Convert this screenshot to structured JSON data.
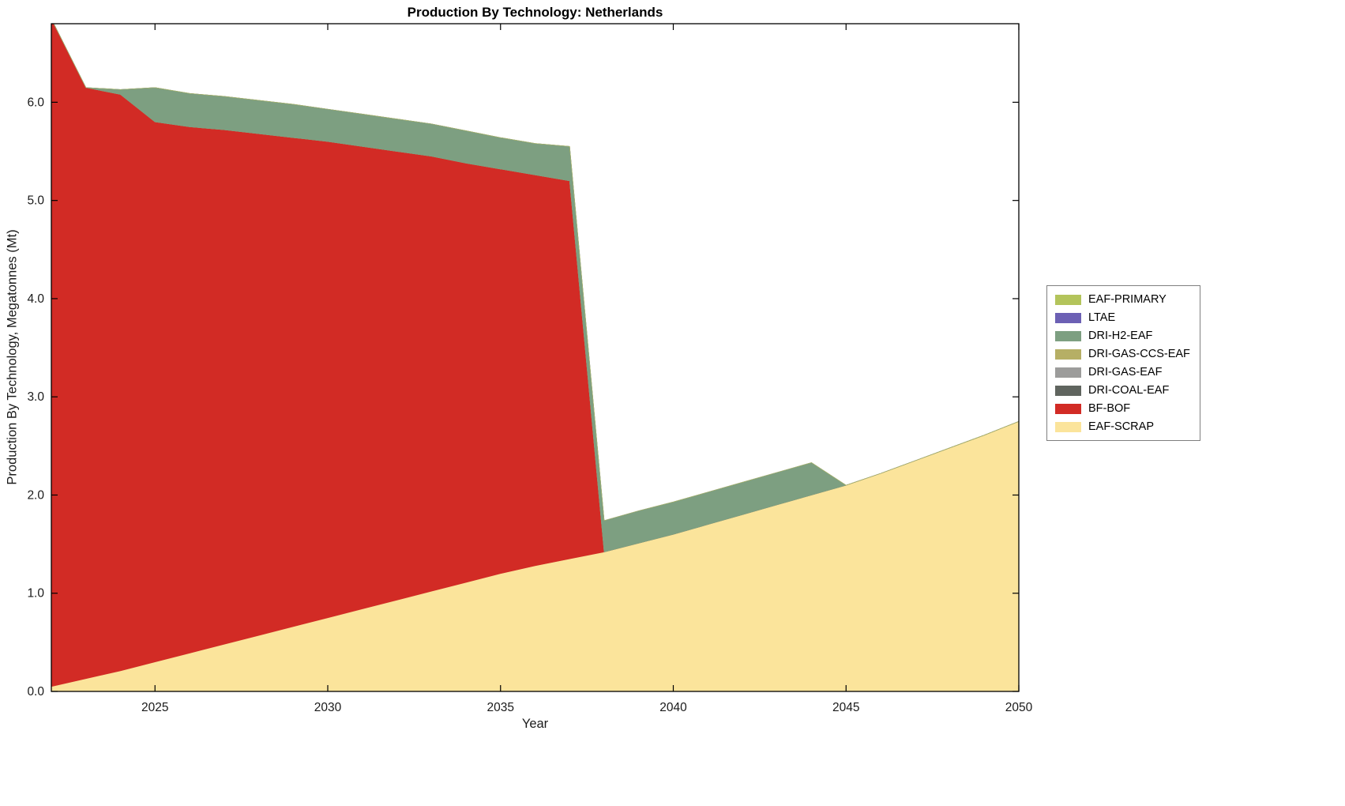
{
  "chart_data": {
    "type": "area",
    "title": "Production By Technology: Netherlands",
    "xlabel": "Year",
    "ylabel": "Production By Technology, Megatonnes (Mt)",
    "xlim": [
      2022,
      2050
    ],
    "ylim": [
      0,
      6.8
    ],
    "xticks": [
      2025,
      2030,
      2035,
      2040,
      2045,
      2050
    ],
    "yticks": [
      0,
      1,
      2,
      3,
      4,
      5,
      6
    ],
    "ytick_labels": [
      "0.0",
      "1.0",
      "2.0",
      "3.0",
      "4.0",
      "5.0",
      "6.0"
    ],
    "grid": false,
    "legend_position": "right",
    "legend_order_top_to_bottom": [
      "EAF-PRIMARY",
      "LTAE",
      "DRI-H2-EAF",
      "DRI-GAS-CCS-EAF",
      "DRI-GAS-EAF",
      "DRI-COAL-EAF",
      "BF-BOF",
      "EAF-SCRAP"
    ],
    "x": [
      2022,
      2023,
      2024,
      2025,
      2026,
      2027,
      2028,
      2029,
      2030,
      2031,
      2032,
      2033,
      2034,
      2035,
      2036,
      2037,
      2038,
      2039,
      2040,
      2041,
      2042,
      2043,
      2044,
      2045,
      2046,
      2047,
      2048,
      2049,
      2050
    ],
    "series": [
      {
        "name": "EAF-SCRAP",
        "color": "#FBE49B",
        "values": [
          0.05,
          0.13,
          0.21,
          0.3,
          0.39,
          0.48,
          0.57,
          0.66,
          0.75,
          0.84,
          0.93,
          1.02,
          1.11,
          1.2,
          1.28,
          1.35,
          1.42,
          1.51,
          1.6,
          1.7,
          1.8,
          1.9,
          2.0,
          2.1,
          2.22,
          2.35,
          2.48,
          2.61,
          2.75
        ]
      },
      {
        "name": "BF-BOF",
        "color": "#D22B25",
        "values": [
          6.8,
          6.02,
          5.87,
          5.5,
          5.36,
          5.24,
          5.11,
          4.98,
          4.85,
          4.71,
          4.57,
          4.43,
          4.27,
          4.12,
          3.98,
          3.85,
          0,
          0,
          0,
          0,
          0,
          0,
          0,
          0,
          0,
          0,
          0,
          0,
          0
        ]
      },
      {
        "name": "DRI-COAL-EAF",
        "color": "#60655F",
        "values": [
          0,
          0,
          0,
          0,
          0,
          0,
          0,
          0,
          0,
          0,
          0,
          0,
          0,
          0,
          0,
          0,
          0,
          0,
          0,
          0,
          0,
          0,
          0,
          0,
          0,
          0,
          0,
          0,
          0
        ]
      },
      {
        "name": "DRI-GAS-EAF",
        "color": "#9C9C9B",
        "values": [
          0,
          0,
          0,
          0,
          0,
          0,
          0,
          0,
          0,
          0,
          0,
          0,
          0,
          0,
          0,
          0,
          0,
          0,
          0,
          0,
          0,
          0,
          0,
          0,
          0,
          0,
          0,
          0,
          0
        ]
      },
      {
        "name": "DRI-GAS-CCS-EAF",
        "color": "#B6AF65",
        "values": [
          0,
          0,
          0,
          0,
          0,
          0,
          0,
          0,
          0,
          0,
          0,
          0,
          0,
          0,
          0,
          0,
          0,
          0,
          0,
          0,
          0,
          0,
          0,
          0,
          0,
          0,
          0,
          0,
          0
        ]
      },
      {
        "name": "DRI-H2-EAF",
        "color": "#7D9F81",
        "values": [
          0,
          0,
          0.05,
          0.35,
          0.34,
          0.34,
          0.34,
          0.34,
          0.33,
          0.33,
          0.33,
          0.33,
          0.33,
          0.32,
          0.32,
          0.35,
          0.32,
          0.33,
          0.33,
          0.33,
          0.33,
          0.33,
          0.33,
          0,
          0,
          0,
          0,
          0,
          0
        ]
      },
      {
        "name": "LTAE",
        "color": "#6C60B4",
        "values": [
          0,
          0,
          0,
          0,
          0,
          0,
          0,
          0,
          0,
          0,
          0,
          0,
          0,
          0,
          0,
          0,
          0,
          0,
          0,
          0,
          0,
          0,
          0,
          0,
          0,
          0,
          0,
          0,
          0
        ]
      },
      {
        "name": "EAF-PRIMARY",
        "color": "#B3C45B",
        "values": [
          0,
          0,
          0,
          0,
          0,
          0,
          0,
          0,
          0,
          0,
          0,
          0,
          0,
          0,
          0,
          0,
          0,
          0,
          0,
          0,
          0,
          0,
          0,
          0,
          0,
          0,
          0,
          0,
          0
        ]
      }
    ]
  }
}
